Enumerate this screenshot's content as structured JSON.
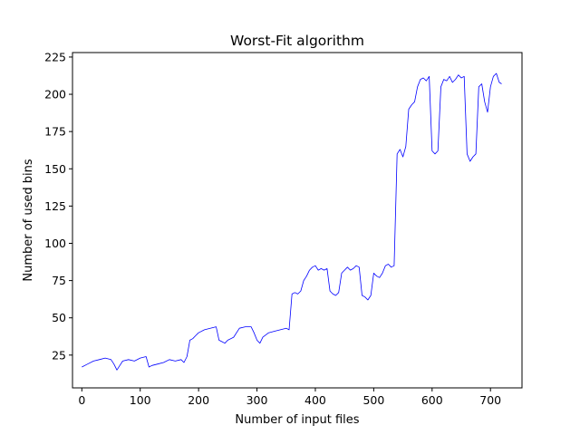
{
  "chart_data": {
    "type": "line",
    "title": "Worst-Fit algorithm",
    "xlabel": "Number of input files",
    "ylabel": "Number of used bins",
    "xlim": [
      -16,
      754
    ],
    "ylim": [
      3,
      228
    ],
    "xticks": [
      0,
      100,
      200,
      300,
      400,
      500,
      600,
      700
    ],
    "yticks": [
      25,
      50,
      75,
      100,
      125,
      150,
      175,
      200,
      225
    ],
    "grid": false,
    "legend": "none",
    "line_color": "#0000ff",
    "series": [
      {
        "x": [
          0,
          10,
          20,
          30,
          40,
          50,
          55,
          60,
          65,
          70,
          80,
          90,
          100,
          110,
          115,
          120,
          130,
          140,
          150,
          160,
          170,
          175,
          180,
          185,
          190,
          195,
          200,
          210,
          220,
          230,
          235,
          240,
          245,
          250,
          260,
          270,
          280,
          290,
          295,
          300,
          305,
          310,
          320,
          330,
          340,
          350,
          355,
          360,
          365,
          370,
          375,
          380,
          385,
          390,
          395,
          400,
          405,
          410,
          415,
          420,
          425,
          430,
          435,
          440,
          445,
          450,
          455,
          460,
          465,
          470,
          475,
          480,
          485,
          490,
          495,
          500,
          505,
          510,
          515,
          520,
          525,
          530,
          535,
          540,
          545,
          550,
          555,
          560,
          565,
          570,
          575,
          580,
          585,
          590,
          595,
          600,
          605,
          610,
          615,
          620,
          625,
          630,
          635,
          640,
          645,
          650,
          655,
          660,
          665,
          670,
          675,
          680,
          685,
          690,
          695,
          700,
          705,
          710,
          715,
          719
        ],
        "values": [
          17,
          19,
          21,
          22,
          23,
          22,
          19,
          15,
          18,
          21,
          22,
          21,
          23,
          24,
          17,
          18,
          19,
          20,
          22,
          21,
          22,
          20,
          24,
          35,
          36,
          38,
          40,
          42,
          43,
          44,
          35,
          34,
          33,
          35,
          37,
          43,
          44,
          44,
          40,
          35,
          33,
          37,
          40,
          41,
          42,
          43,
          42,
          66,
          67,
          66,
          68,
          75,
          78,
          82,
          84,
          85,
          82,
          83,
          82,
          83,
          68,
          66,
          65,
          67,
          80,
          82,
          84,
          82,
          83,
          85,
          84,
          65,
          64,
          62,
          65,
          80,
          78,
          77,
          80,
          85,
          86,
          84,
          85,
          160,
          163,
          158,
          165,
          190,
          193,
          195,
          205,
          210,
          211,
          209,
          212,
          162,
          160,
          162,
          205,
          210,
          209,
          212,
          208,
          210,
          213,
          211,
          212,
          160,
          155,
          158,
          160,
          205,
          207,
          195,
          188,
          205,
          212,
          214,
          208,
          207
        ]
      }
    ]
  }
}
